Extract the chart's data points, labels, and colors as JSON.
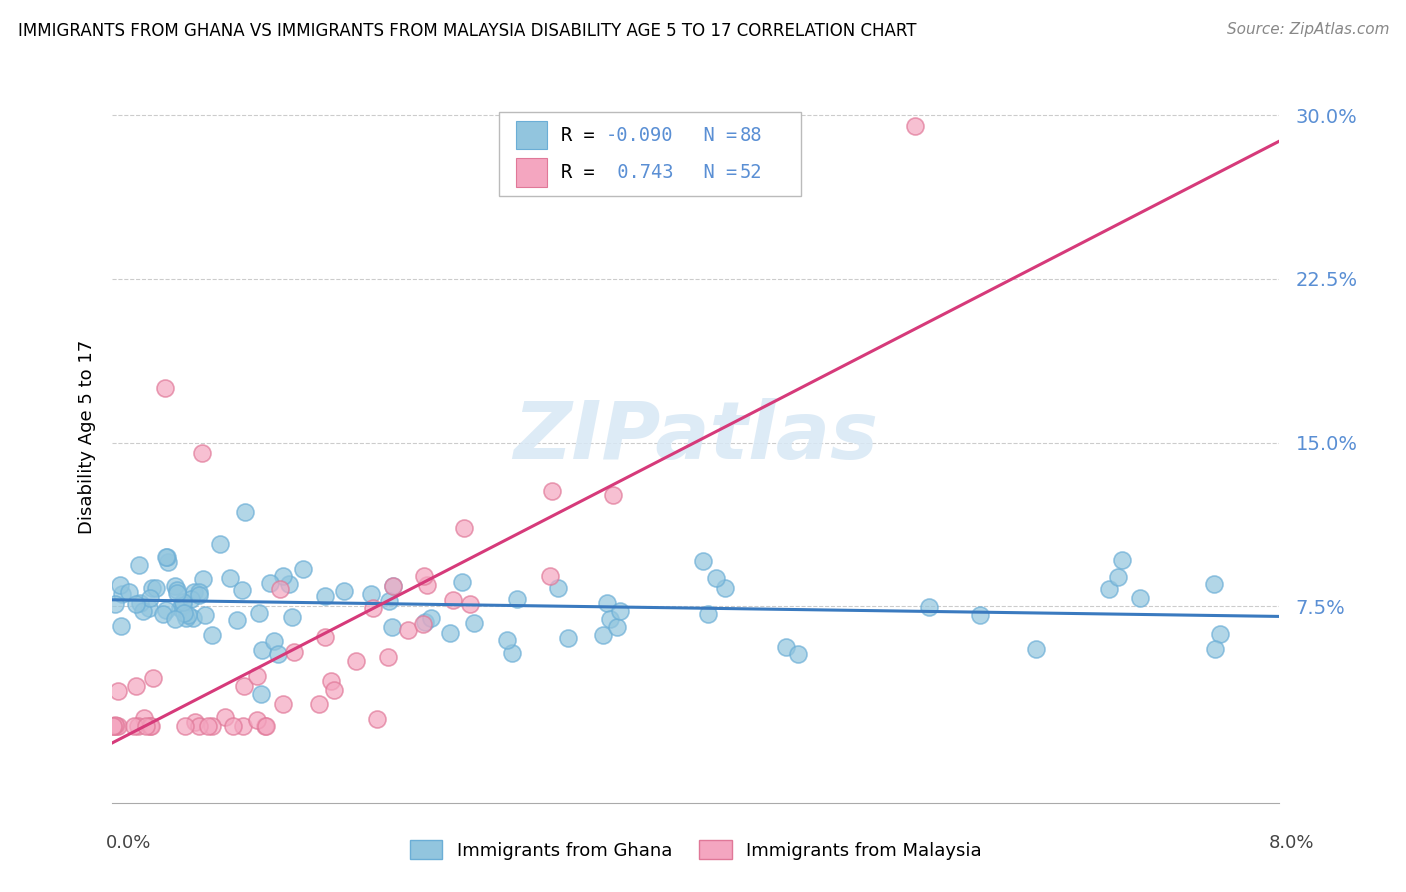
{
  "title": "IMMIGRANTS FROM GHANA VS IMMIGRANTS FROM MALAYSIA DISABILITY AGE 5 TO 17 CORRELATION CHART",
  "source": "Source: ZipAtlas.com",
  "ylabel": "Disability Age 5 to 17",
  "xmin": 0.0,
  "xmax": 0.08,
  "ymin": -0.015,
  "ymax": 0.32,
  "ghana_color": "#92c5de",
  "ghana_edge_color": "#6baed6",
  "malaysia_color": "#f4a6c0",
  "malaysia_edge_color": "#e07898",
  "ghana_line_color": "#3a7abf",
  "malaysia_line_color": "#d63a7a",
  "ghana_R": -0.09,
  "ghana_N": 88,
  "malaysia_R": 0.743,
  "malaysia_N": 52,
  "watermark": "ZIPatlas",
  "label_color": "#5a8fd4",
  "legend_ghana_label": "Immigrants from Ghana",
  "legend_malaysia_label": "Immigrants from Malaysia"
}
